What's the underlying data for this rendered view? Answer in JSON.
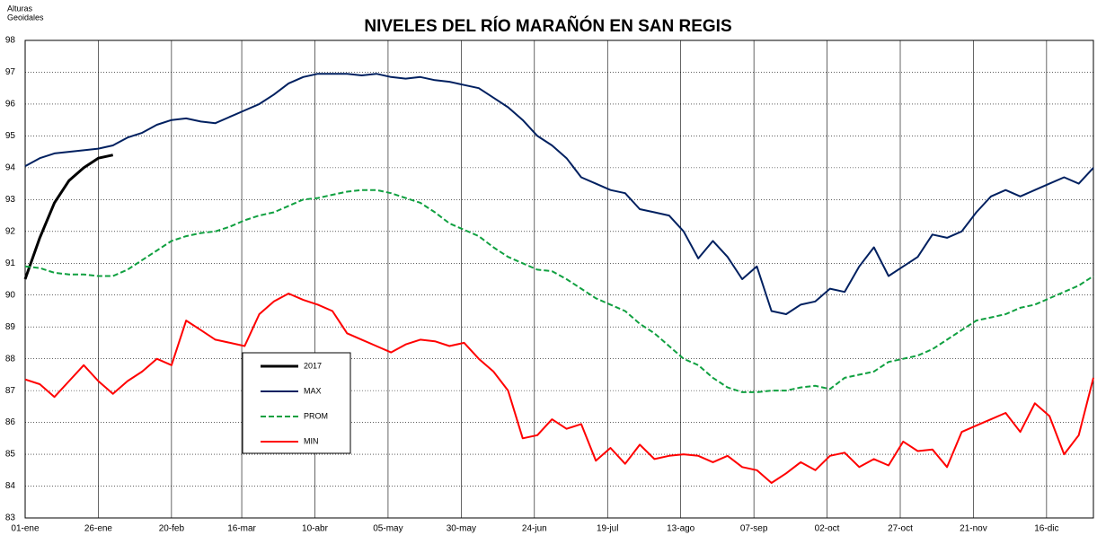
{
  "chart_data": {
    "type": "line",
    "title": "NIVELES DEL RÍO MARAÑÓN EN SAN REGIS",
    "ylabel_lines": [
      "Alturas",
      "Geoidales"
    ],
    "x": [
      1,
      6,
      11,
      16,
      21,
      26,
      31,
      36,
      41,
      46,
      51,
      56,
      61,
      66,
      71,
      76,
      81,
      86,
      91,
      96,
      101,
      106,
      111,
      116,
      121,
      126,
      131,
      136,
      141,
      146,
      151,
      156,
      161,
      166,
      171,
      176,
      181,
      186,
      191,
      196,
      201,
      206,
      211,
      216,
      221,
      226,
      231,
      236,
      241,
      246,
      251,
      256,
      261,
      266,
      271,
      276,
      281,
      286,
      291,
      296,
      301,
      306,
      311,
      316,
      321,
      326,
      331,
      336,
      341,
      346,
      351,
      356,
      361,
      366
    ],
    "xlim": [
      1,
      366
    ],
    "xticks": [
      {
        "value": 1,
        "label": "01-ene"
      },
      {
        "value": 26,
        "label": "26-ene"
      },
      {
        "value": 51,
        "label": "20-feb"
      },
      {
        "value": 75,
        "label": "16-mar"
      },
      {
        "value": 100,
        "label": "10-abr"
      },
      {
        "value": 125,
        "label": "05-may"
      },
      {
        "value": 150,
        "label": "30-may"
      },
      {
        "value": 175,
        "label": "24-jun"
      },
      {
        "value": 200,
        "label": "19-jul"
      },
      {
        "value": 225,
        "label": "13-ago"
      },
      {
        "value": 250,
        "label": "07-sep"
      },
      {
        "value": 275,
        "label": "02-oct"
      },
      {
        "value": 300,
        "label": "27-oct"
      },
      {
        "value": 325,
        "label": "21-nov"
      },
      {
        "value": 350,
        "label": "16-dic"
      }
    ],
    "ylim": [
      83,
      98
    ],
    "yticks": [
      83,
      84,
      85,
      86,
      87,
      88,
      89,
      90,
      91,
      92,
      93,
      94,
      95,
      96,
      97,
      98
    ],
    "grid": true,
    "series": [
      {
        "name": "2017",
        "color": "#000000",
        "width": 3,
        "dashed": false,
        "values": [
          90.5,
          91.8,
          92.9,
          93.6,
          94.0,
          94.3,
          94.4,
          null,
          null,
          null,
          null,
          null,
          null,
          null,
          null,
          null,
          null,
          null,
          null,
          null,
          null,
          null,
          null,
          null,
          null,
          null,
          null,
          null,
          null,
          null,
          null,
          null,
          null,
          null,
          null,
          null,
          null,
          null,
          null,
          null,
          null,
          null,
          null,
          null,
          null,
          null,
          null,
          null,
          null,
          null,
          null,
          null,
          null,
          null,
          null,
          null,
          null,
          null,
          null,
          null,
          null,
          null,
          null,
          null,
          null,
          null,
          null,
          null,
          null,
          null,
          null,
          null,
          null,
          null
        ]
      },
      {
        "name": "MAX",
        "color": "#002060",
        "width": 2,
        "dashed": false,
        "values": [
          94.05,
          94.3,
          94.45,
          94.5,
          94.55,
          94.6,
          94.7,
          94.95,
          95.1,
          95.35,
          95.5,
          95.55,
          95.45,
          95.4,
          95.6,
          95.8,
          96.0,
          96.3,
          96.65,
          96.85,
          96.95,
          96.95,
          96.95,
          96.9,
          96.95,
          96.85,
          96.8,
          96.85,
          96.75,
          96.7,
          96.6,
          96.5,
          96.2,
          95.9,
          95.5,
          95.0,
          94.7,
          94.3,
          93.7,
          93.5,
          93.3,
          93.2,
          92.7,
          92.6,
          92.5,
          92.0,
          91.15,
          91.7,
          91.2,
          90.5,
          90.9,
          89.5,
          89.4,
          89.7,
          89.8,
          90.2,
          90.1,
          90.9,
          91.5,
          90.6,
          90.9,
          91.2,
          91.9,
          91.8,
          92.0,
          92.6,
          93.1,
          93.3,
          93.1,
          93.3,
          93.5,
          93.7,
          93.5,
          94.0
        ]
      },
      {
        "name": "PROM",
        "color": "#10a040",
        "width": 2,
        "dashed": true,
        "values": [
          90.9,
          90.85,
          90.7,
          90.65,
          90.65,
          90.6,
          90.6,
          90.8,
          91.1,
          91.4,
          91.7,
          91.85,
          91.95,
          92.0,
          92.15,
          92.35,
          92.5,
          92.6,
          92.8,
          93.0,
          93.05,
          93.15,
          93.25,
          93.3,
          93.3,
          93.2,
          93.05,
          92.9,
          92.6,
          92.25,
          92.05,
          91.85,
          91.5,
          91.2,
          91.0,
          90.8,
          90.75,
          90.5,
          90.2,
          89.9,
          89.7,
          89.5,
          89.1,
          88.8,
          88.4,
          88.0,
          87.8,
          87.4,
          87.1,
          86.95,
          86.95,
          87.0,
          87.0,
          87.1,
          87.15,
          87.05,
          87.4,
          87.5,
          87.6,
          87.9,
          88.0,
          88.1,
          88.3,
          88.6,
          88.9,
          89.2,
          89.3,
          89.4,
          89.6,
          89.7,
          89.9,
          90.1,
          90.3,
          90.6
        ]
      },
      {
        "name": "MIN",
        "color": "#ff0000",
        "width": 2,
        "dashed": false,
        "values": [
          87.35,
          87.2,
          86.8,
          87.3,
          87.8,
          87.3,
          86.9,
          87.3,
          87.6,
          88.0,
          87.8,
          89.2,
          88.9,
          88.6,
          88.5,
          88.4,
          89.4,
          89.8,
          90.05,
          89.85,
          89.7,
          89.5,
          88.8,
          88.6,
          88.4,
          88.2,
          88.45,
          88.6,
          88.55,
          88.4,
          88.5,
          88.0,
          87.6,
          87.0,
          85.5,
          85.6,
          86.1,
          85.8,
          85.95,
          84.8,
          85.2,
          84.7,
          85.3,
          84.85,
          84.95,
          85.0,
          84.95,
          84.75,
          84.95,
          84.6,
          84.5,
          84.1,
          84.4,
          84.75,
          84.5,
          84.95,
          85.05,
          84.6,
          84.85,
          84.65,
          85.4,
          85.1,
          85.15,
          84.6,
          85.7,
          85.9,
          86.1,
          86.3,
          85.7,
          86.6,
          86.2,
          85.0,
          85.6,
          87.4
        ]
      }
    ]
  }
}
